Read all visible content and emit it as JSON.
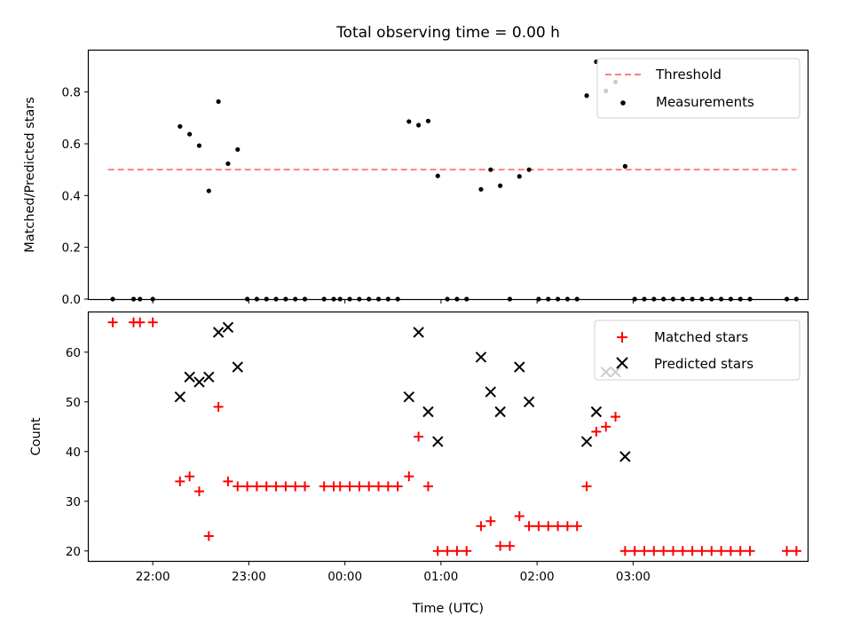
{
  "chart_data": [
    {
      "type": "scatter",
      "title": "Total observing time = 0.00 h",
      "xlabel": "",
      "ylabel": "Matched/Predicted stars",
      "ylim": [
        0,
        0.96
      ],
      "yticks": [
        "0.0",
        "0.2",
        "0.4",
        "0.6",
        "0.8"
      ],
      "legend_position": "top-right",
      "threshold": {
        "name": "Threshold",
        "value": 0.5,
        "x_range": [
          -148,
          282
        ],
        "color": "#ff7f7f"
      },
      "series": [
        {
          "name": "Measurements",
          "color": "#000000",
          "points": [
            [
              -145,
              0
            ],
            [
              -132,
              0
            ],
            [
              -128,
              0
            ],
            [
              -120,
              0
            ],
            [
              -103,
              0.667
            ],
            [
              -97,
              0.637
            ],
            [
              -91,
              0.593
            ],
            [
              -85,
              0.418
            ],
            [
              -79,
              0.763
            ],
            [
              -73,
              0.523
            ],
            [
              -67,
              0.578
            ],
            [
              -61,
              0
            ],
            [
              -55,
              0
            ],
            [
              -49,
              0
            ],
            [
              -43,
              0
            ],
            [
              -37,
              0
            ],
            [
              -31,
              0
            ],
            [
              -25,
              0
            ],
            [
              -13,
              0
            ],
            [
              -7,
              0
            ],
            [
              -3,
              0
            ],
            [
              3,
              0
            ],
            [
              9,
              0
            ],
            [
              15,
              0
            ],
            [
              21,
              0
            ],
            [
              27,
              0
            ],
            [
              33,
              0
            ],
            [
              40,
              0.686
            ],
            [
              46,
              0.672
            ],
            [
              52,
              0.688
            ],
            [
              58,
              0.476
            ],
            [
              64,
              0
            ],
            [
              70,
              0
            ],
            [
              76,
              0
            ],
            [
              85,
              0.424
            ],
            [
              91,
              0.5
            ],
            [
              97,
              0.438
            ],
            [
              103,
              0
            ],
            [
              109,
              0.474
            ],
            [
              115,
              0.5
            ],
            [
              121,
              0
            ],
            [
              127,
              0
            ],
            [
              133,
              0
            ],
            [
              139,
              0
            ],
            [
              145,
              0
            ],
            [
              151,
              0.786
            ],
            [
              157,
              0.917
            ],
            [
              163,
              0.804
            ],
            [
              169,
              0.839
            ],
            [
              175,
              0.513
            ],
            [
              181,
              0
            ],
            [
              187,
              0
            ],
            [
              193,
              0
            ],
            [
              199,
              0
            ],
            [
              205,
              0
            ],
            [
              211,
              0
            ],
            [
              217,
              0
            ],
            [
              223,
              0
            ],
            [
              229,
              0
            ],
            [
              235,
              0
            ],
            [
              241,
              0
            ],
            [
              247,
              0
            ],
            [
              253,
              0
            ],
            [
              276,
              0
            ],
            [
              282,
              0
            ]
          ]
        }
      ]
    },
    {
      "type": "scatter",
      "title": "",
      "xlabel": "Time (UTC)",
      "ylabel": "Count",
      "ylim": [
        18,
        68
      ],
      "yticks": [
        "20",
        "30",
        "40",
        "50",
        "60"
      ],
      "xticks": [
        "22:00",
        "23:00",
        "00:00",
        "01:00",
        "02:00",
        "03:00"
      ],
      "x_unit": "minutes relative to 00:00 UTC",
      "xlim": [
        -160,
        289
      ],
      "legend_position": "top-right",
      "series": [
        {
          "name": "Matched stars",
          "marker": "plus",
          "color": "#ff0000",
          "points": [
            [
              -145,
              66
            ],
            [
              -132,
              66
            ],
            [
              -128,
              66
            ],
            [
              -120,
              66
            ],
            [
              -103,
              34
            ],
            [
              -97,
              35
            ],
            [
              -91,
              32
            ],
            [
              -85,
              23
            ],
            [
              -79,
              49
            ],
            [
              -73,
              34
            ],
            [
              -67,
              33
            ],
            [
              -61,
              33
            ],
            [
              -55,
              33
            ],
            [
              -49,
              33
            ],
            [
              -43,
              33
            ],
            [
              -37,
              33
            ],
            [
              -31,
              33
            ],
            [
              -25,
              33
            ],
            [
              -13,
              33
            ],
            [
              -7,
              33
            ],
            [
              -3,
              33
            ],
            [
              3,
              33
            ],
            [
              9,
              33
            ],
            [
              15,
              33
            ],
            [
              21,
              33
            ],
            [
              27,
              33
            ],
            [
              33,
              33
            ],
            [
              40,
              35
            ],
            [
              46,
              43
            ],
            [
              52,
              33
            ],
            [
              58,
              20
            ],
            [
              64,
              20
            ],
            [
              70,
              20
            ],
            [
              76,
              20
            ],
            [
              85,
              25
            ],
            [
              91,
              26
            ],
            [
              97,
              21
            ],
            [
              103,
              21
            ],
            [
              109,
              27
            ],
            [
              115,
              25
            ],
            [
              121,
              25
            ],
            [
              127,
              25
            ],
            [
              133,
              25
            ],
            [
              139,
              25
            ],
            [
              145,
              25
            ],
            [
              151,
              33
            ],
            [
              157,
              44
            ],
            [
              163,
              45
            ],
            [
              169,
              47
            ],
            [
              175,
              20
            ],
            [
              181,
              20
            ],
            [
              187,
              20
            ],
            [
              193,
              20
            ],
            [
              199,
              20
            ],
            [
              205,
              20
            ],
            [
              211,
              20
            ],
            [
              217,
              20
            ],
            [
              223,
              20
            ],
            [
              229,
              20
            ],
            [
              235,
              20
            ],
            [
              241,
              20
            ],
            [
              247,
              20
            ],
            [
              253,
              20
            ],
            [
              276,
              20
            ],
            [
              282,
              20
            ]
          ]
        },
        {
          "name": "Predicted stars",
          "marker": "x",
          "color": "#000000",
          "points": [
            [
              -103,
              51
            ],
            [
              -97,
              55
            ],
            [
              -91,
              54
            ],
            [
              -85,
              55
            ],
            [
              -79,
              64
            ],
            [
              -73,
              65
            ],
            [
              -67,
              57
            ],
            [
              40,
              51
            ],
            [
              46,
              64
            ],
            [
              52,
              48
            ],
            [
              58,
              42
            ],
            [
              85,
              59
            ],
            [
              91,
              52
            ],
            [
              97,
              48
            ],
            [
              109,
              57
            ],
            [
              115,
              50
            ],
            [
              151,
              42
            ],
            [
              157,
              48
            ],
            [
              163,
              56
            ],
            [
              169,
              56
            ],
            [
              175,
              39
            ]
          ]
        }
      ]
    }
  ]
}
